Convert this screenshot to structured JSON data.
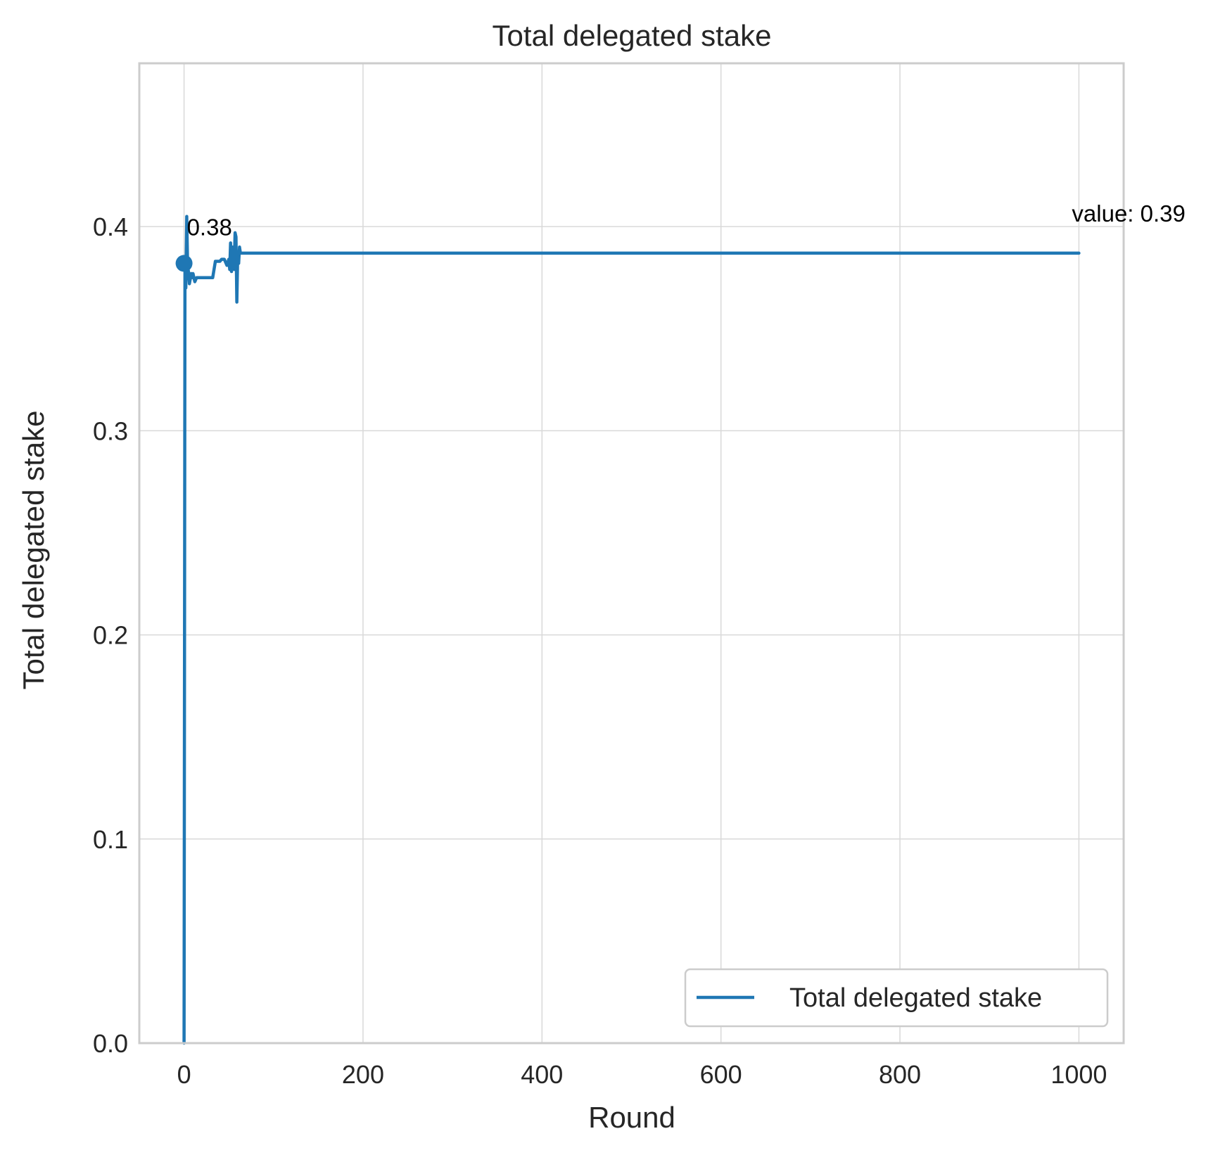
{
  "chart_data": {
    "type": "line",
    "title": "Total delegated stake",
    "xlabel": "Round",
    "ylabel": "Total delegated stake",
    "xlim": [
      -50,
      1050
    ],
    "ylim": [
      0,
      0.48
    ],
    "x_ticks": [
      0,
      200,
      400,
      600,
      800,
      1000
    ],
    "x_tick_labels": [
      "0",
      "200",
      "400",
      "600",
      "800",
      "1000"
    ],
    "y_ticks": [
      0.0,
      0.1,
      0.2,
      0.3,
      0.4
    ],
    "y_tick_labels": [
      "0.0",
      "0.1",
      "0.2",
      "0.3",
      "0.4"
    ],
    "grid": true,
    "legend": {
      "position": "bottom-right",
      "entries": [
        "Total delegated stake"
      ]
    },
    "series": [
      {
        "name": "Total delegated stake",
        "color": "#1f77b4",
        "x": [
          0,
          1,
          2,
          3,
          4,
          5,
          6,
          8,
          9,
          10,
          12,
          14,
          32,
          35,
          40,
          42,
          45,
          48,
          50,
          51,
          52,
          53,
          54,
          55,
          56,
          57,
          58,
          59,
          60,
          61,
          62,
          63,
          64,
          65,
          1000
        ],
        "y": [
          0.0,
          0.382,
          0.37,
          0.405,
          0.38,
          0.378,
          0.372,
          0.377,
          0.375,
          0.377,
          0.373,
          0.375,
          0.375,
          0.383,
          0.383,
          0.384,
          0.384,
          0.381,
          0.384,
          0.379,
          0.392,
          0.378,
          0.39,
          0.384,
          0.379,
          0.397,
          0.395,
          0.363,
          0.387,
          0.382,
          0.39,
          0.387,
          0.387,
          0.387,
          0.387
        ]
      }
    ],
    "markers": [
      {
        "x": 0,
        "y": 0.382,
        "color": "#1f77b4"
      }
    ],
    "annotations": [
      {
        "text": "0.38",
        "x": 0,
        "y": 0.382
      },
      {
        "text": "value: 0.39",
        "x": 1000,
        "y": 0.387
      }
    ]
  }
}
